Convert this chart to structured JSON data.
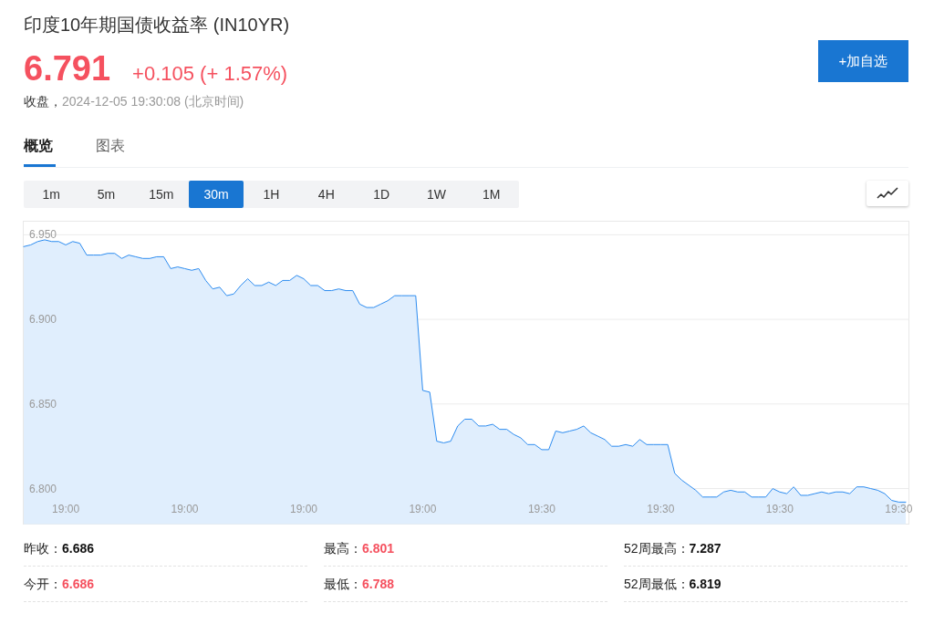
{
  "chart_data": {
    "type": "area",
    "title": "印度10年期国债收益率 (IN10YR)",
    "annotations": [
      "6.791",
      "+0.105 (+ 1.57%)",
      "收盘，",
      "2024-12-05 19:30:08 (北京时间)",
      "+加自选",
      "概览",
      "图表",
      "1m",
      "5m",
      "15m",
      "30m",
      "1H",
      "4H",
      "1D",
      "1W",
      "1M",
      "昨收：",
      "6.686",
      "最高：",
      "6.801",
      "52周最高：",
      "7.287",
      "今开：",
      "6.686",
      "最低：",
      "6.788",
      "52周最低：",
      "6.819"
    ],
    "categories": [
      null,
      null,
      null,
      null,
      null,
      null,
      "19:00",
      null,
      null,
      null,
      null,
      null,
      null,
      null,
      null,
      null,
      null,
      null,
      null,
      null,
      null,
      null,
      null,
      "19:00",
      null,
      null,
      null,
      null,
      null,
      null,
      null,
      null,
      null,
      null,
      null,
      null,
      null,
      null,
      null,
      null,
      "19:00",
      null,
      null,
      null,
      null,
      null,
      null,
      null,
      null,
      null,
      null,
      null,
      null,
      null,
      null,
      null,
      null,
      "19:00",
      null,
      null,
      null,
      null,
      null,
      null,
      null,
      null,
      null,
      null,
      null,
      null,
      null,
      null,
      null,
      null,
      "19:30",
      null,
      null,
      null,
      null,
      null,
      null,
      null,
      null,
      null,
      null,
      null,
      null,
      null,
      null,
      null,
      null,
      "19:30",
      null,
      null,
      null,
      null,
      null,
      null,
      null,
      null,
      null,
      null,
      null,
      null,
      null,
      null,
      null,
      null,
      "19:30",
      null,
      null,
      null,
      null,
      null,
      null,
      null,
      null,
      null,
      null,
      null,
      null,
      null,
      null,
      null,
      null,
      "19:30",
      null
    ],
    "series": [
      {
        "color": "#2d8cf0",
        "values": [
          6.943,
          6.944,
          6.946,
          6.947,
          6.946,
          6.946,
          6.944,
          6.946,
          6.945,
          6.938,
          6.938,
          6.938,
          6.939,
          6.939,
          6.936,
          6.938,
          6.937,
          6.936,
          6.936,
          6.937,
          6.937,
          6.93,
          6.931,
          6.93,
          6.929,
          6.93,
          6.923,
          6.918,
          6.919,
          6.914,
          6.915,
          6.92,
          6.924,
          6.92,
          6.92,
          6.922,
          6.92,
          6.923,
          6.923,
          6.926,
          6.924,
          6.92,
          6.92,
          6.917,
          6.917,
          6.918,
          6.917,
          6.917,
          6.909,
          6.907,
          6.907,
          6.909,
          6.911,
          6.914,
          6.914,
          6.914,
          6.914,
          6.858,
          6.857,
          6.828,
          6.827,
          6.828,
          6.837,
          6.841,
          6.841,
          6.837,
          6.837,
          6.838,
          6.835,
          6.835,
          6.832,
          6.83,
          6.826,
          6.826,
          6.823,
          6.823,
          6.834,
          6.833,
          6.834,
          6.835,
          6.837,
          6.833,
          6.831,
          6.829,
          6.825,
          6.825,
          6.826,
          6.825,
          6.829,
          6.826,
          6.826,
          6.826,
          6.826,
          6.809,
          6.805,
          6.802,
          6.799,
          6.795,
          6.795,
          6.795,
          6.798,
          6.799,
          6.798,
          6.798,
          6.795,
          6.795,
          6.795,
          6.8,
          6.798,
          6.797,
          6.801,
          6.796,
          6.796,
          6.797,
          6.798,
          6.797,
          6.798,
          6.798,
          6.797,
          6.801,
          6.801,
          6.8,
          6.799,
          6.797,
          6.793,
          6.792,
          6.792
        ]
      }
    ],
    "ylim": [
      6.779,
      6.958
    ],
    "yticks": [
      {
        "value": 6.8,
        "label": "6.800"
      },
      {
        "value": 6.85,
        "label": "6.850"
      },
      {
        "value": 6.9,
        "label": "6.900"
      },
      {
        "value": 6.95,
        "label": "6.950"
      }
    ],
    "grid": "y"
  }
}
